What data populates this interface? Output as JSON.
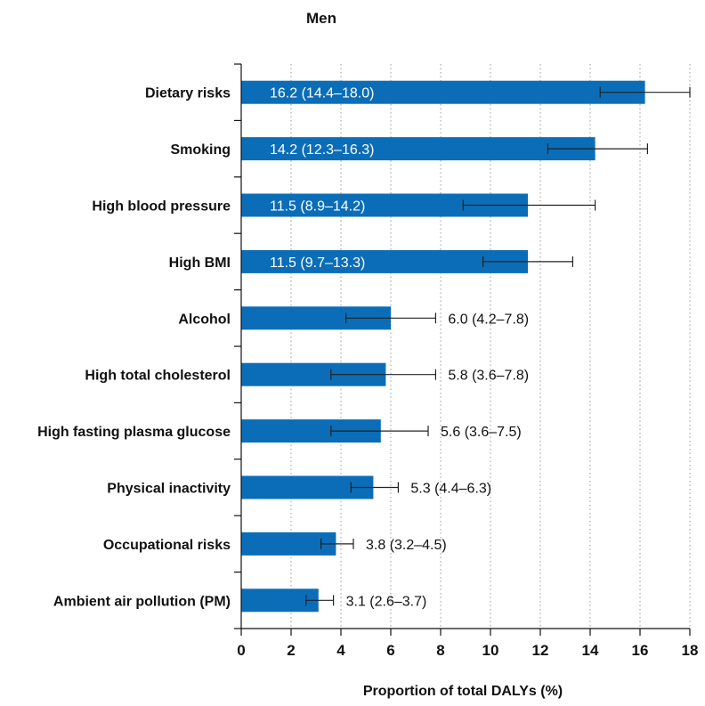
{
  "chart_data": {
    "type": "bar",
    "orientation": "horizontal",
    "title": "Men",
    "xlabel": "Proportion of total DALYs (%)",
    "ylabel": "",
    "xlim": [
      0,
      18
    ],
    "xticks": [
      "0",
      "2",
      "4",
      "6",
      "8",
      "10",
      "12",
      "14",
      "16",
      "18"
    ],
    "grid": "vertical dotted",
    "bar_color": "#0b6db7",
    "categories": [
      "Dietary risks",
      "Smoking",
      "High blood pressure",
      "High BMI",
      "Alcohol",
      "High total cholesterol",
      "High fasting plasma glucose",
      "Physical inactivity",
      "Occupational risks",
      "Ambient air pollution (PM)"
    ],
    "values": [
      16.2,
      14.2,
      11.5,
      11.5,
      6.0,
      5.8,
      5.6,
      5.3,
      3.8,
      3.1
    ],
    "ci_low": [
      14.4,
      12.3,
      8.9,
      9.7,
      4.2,
      3.6,
      3.6,
      4.4,
      3.2,
      2.6
    ],
    "ci_high": [
      18.0,
      16.3,
      14.2,
      13.3,
      7.8,
      7.8,
      7.5,
      6.3,
      4.5,
      3.7
    ],
    "data_labels": [
      "16.2 (14.4–18.0)",
      "14.2 (12.3–16.3)",
      "11.5 (8.9–14.2)",
      "11.5 (9.7–13.3)",
      "6.0 (4.2–7.8)",
      "5.8 (3.6–7.8)",
      "5.6 (3.6–7.5)",
      "5.3 (4.4–6.3)",
      "3.8 (3.2–4.5)",
      "3.1 (2.6–3.7)"
    ]
  }
}
